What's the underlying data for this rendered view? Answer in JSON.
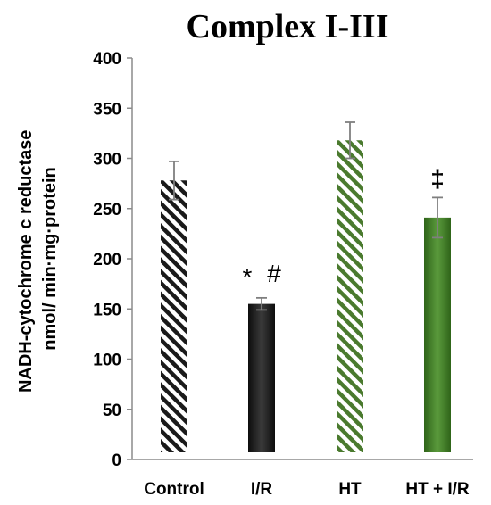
{
  "chart_data": {
    "type": "bar",
    "title": "Complex I-III",
    "ylabel_lines": [
      "NADH-cytochrome c reductase",
      "nmol/ min·mg·protein"
    ],
    "xlabel": "",
    "ylim": [
      0,
      400
    ],
    "yticks": [
      0,
      50,
      100,
      150,
      200,
      250,
      300,
      350,
      400
    ],
    "categories": [
      "Control",
      "I/R",
      "HT",
      "HT + I/R"
    ],
    "values": [
      278,
      155,
      318,
      241
    ],
    "errors": [
      19,
      6,
      18,
      20
    ],
    "annotations": [
      {
        "category": "I/R",
        "marks": [
          "*",
          "#"
        ]
      },
      {
        "category": "HT + I/R",
        "marks": [
          "‡"
        ]
      }
    ],
    "fills": [
      {
        "style": "hatched",
        "color": "#1a1a1a"
      },
      {
        "style": "solid",
        "color": "#1a1a1a"
      },
      {
        "style": "hatched",
        "color": "#4a7a2e"
      },
      {
        "style": "solid",
        "color": "#3f7a26"
      }
    ],
    "grid": false,
    "legend": "none"
  }
}
